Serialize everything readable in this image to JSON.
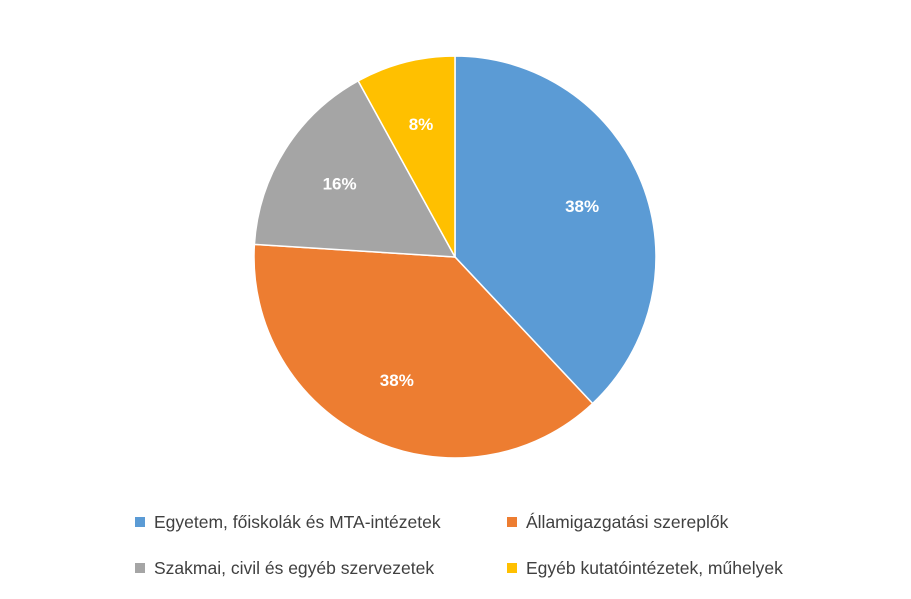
{
  "chart_data": {
    "type": "pie",
    "categories": [
      "Egyetem, főiskolák és MTA-intézetek",
      "Államigazgatási szereplők",
      "Szakmai, civil és egyéb szervezetek",
      "Egyéb kutatóintézetek, műhelyek"
    ],
    "values": [
      38,
      38,
      16,
      8
    ],
    "data_labels": [
      "38%",
      "38%",
      "16%",
      "8%"
    ],
    "colors": [
      "#5B9BD5",
      "#ED7D31",
      "#A5A5A5",
      "#FFC000"
    ],
    "legend_position": "bottom",
    "start_angle": "12 o'clock",
    "direction": "clockwise"
  },
  "legend": {
    "items": [
      {
        "label": "Egyetem, főiskolák és MTA-intézetek",
        "color": "#5B9BD5"
      },
      {
        "label": "Államigazgatási szereplők",
        "color": "#ED7D31"
      },
      {
        "label": "Szakmai, civil és egyéb szervezetek",
        "color": "#A5A5A5"
      },
      {
        "label": "Egyéb kutatóintézetek, műhelyek",
        "color": "#FFC000"
      }
    ]
  }
}
